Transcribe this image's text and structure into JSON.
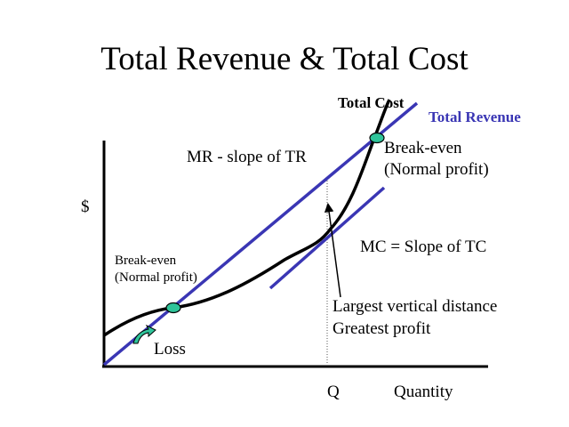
{
  "slide": {
    "title": "Total Revenue & Total Cost"
  },
  "labels": {
    "y_axis": "$",
    "x_axis": "Quantity",
    "q_marker": "Q",
    "total_cost": "Total Cost",
    "total_revenue": "Total Revenue",
    "mr_slope": "MR - slope of TR",
    "mc_slope": "MC = Slope of TC",
    "breakeven_upper_line1": "Break-even",
    "breakeven_upper_line2": "(Normal profit)",
    "breakeven_lower_line1": "Break-even",
    "breakeven_lower_line2": "(Normal profit)",
    "largest_vertical": "Largest vertical distance",
    "greatest_profit": "Greatest profit",
    "loss": "Loss"
  },
  "colors": {
    "revenue_line": "#3a36b4",
    "cost_curve": "#000000",
    "breakeven_marker": "#2fc49a",
    "loss_arrow": "#2fc49a",
    "total_revenue_label": "#3a36b4",
    "axes": "#000000"
  },
  "icons": {
    "breakeven_marker": "ellipse-marker",
    "loss_arrow": "curved-arrow-icon",
    "pointer_arrow": "arrow-icon"
  }
}
